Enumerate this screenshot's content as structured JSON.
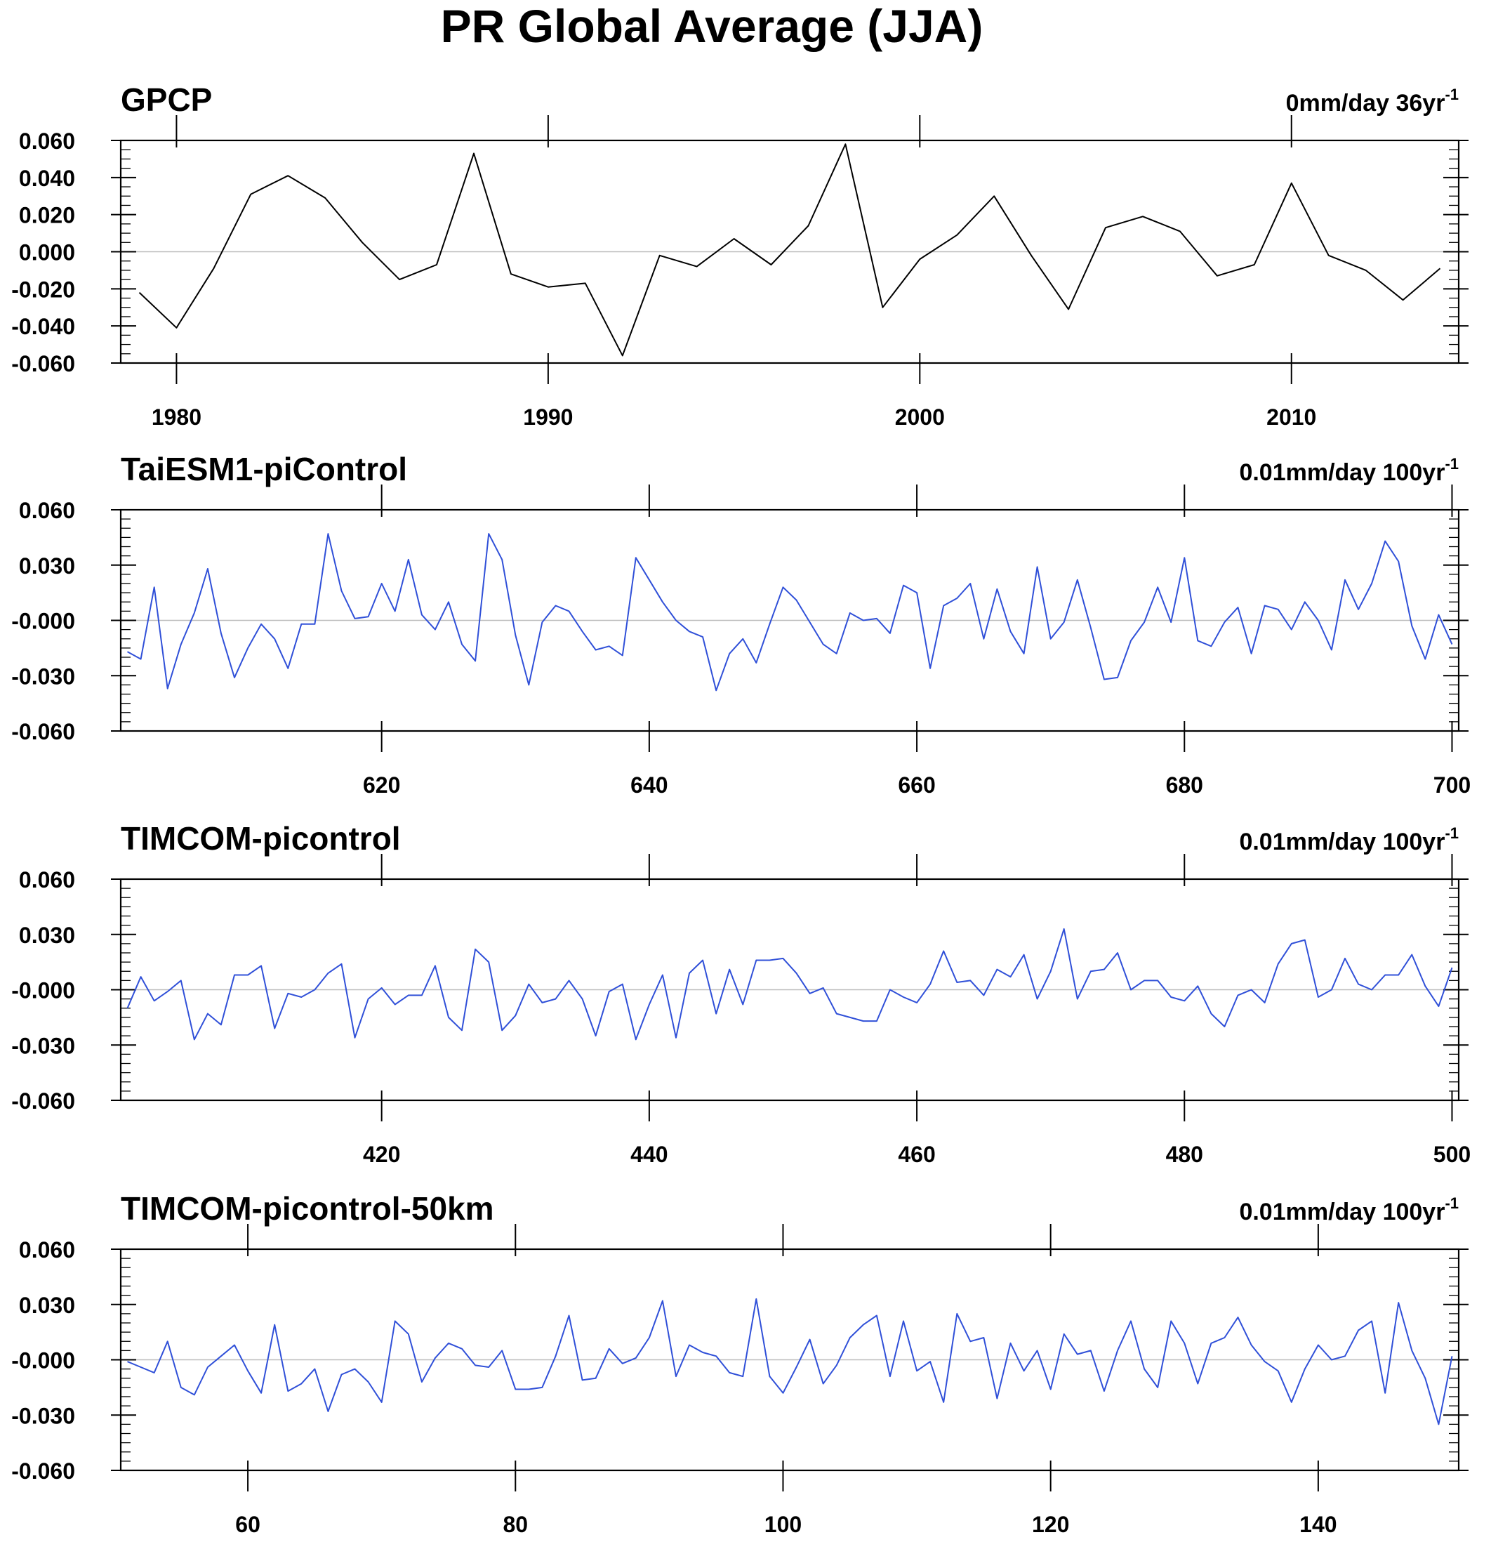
{
  "figure": {
    "title": "PR Global Average (JJA)"
  },
  "chart_data": [
    {
      "type": "line",
      "title": "GPCP",
      "trend_label": "0mm/day 36yr",
      "trend_superscript": "-1",
      "line_color": "#000000",
      "zero_line_color": "#bdbdbd",
      "xlabel": "",
      "ylabel": "",
      "xlim": [
        1978.5,
        2014.5
      ],
      "ylim": [
        -0.06,
        0.06
      ],
      "x_ticks": [
        1980,
        1990,
        2000,
        2010
      ],
      "x_tick_labels": [
        "1980",
        "1990",
        "2000",
        "2010"
      ],
      "y_ticks": [
        0.06,
        0.04,
        0.02,
        0.0,
        -0.02,
        -0.04,
        -0.06
      ],
      "y_tick_labels": [
        "0.060",
        "0.040",
        "0.020",
        "0.000",
        "-0.020",
        "-0.040",
        "-0.060"
      ],
      "grid": false,
      "series": [
        {
          "x_start": 1979,
          "x_step": 1,
          "values": [
            -0.022,
            -0.041,
            -0.009,
            0.031,
            0.041,
            0.029,
            0.005,
            -0.015,
            -0.007,
            0.053,
            -0.012,
            -0.019,
            -0.017,
            -0.056,
            -0.002,
            -0.008,
            0.007,
            -0.007,
            0.014,
            0.058,
            -0.03,
            -0.004,
            0.009,
            0.03,
            -0.002,
            -0.031,
            0.013,
            0.019,
            0.011,
            -0.013,
            -0.007,
            0.037,
            -0.002,
            -0.01,
            -0.026,
            -0.009
          ]
        }
      ]
    },
    {
      "type": "line",
      "title": "TaiESM1-piControl",
      "trend_label": "0.01mm/day 100yr",
      "trend_superscript": "-1",
      "line_color": "#3050d8",
      "zero_line_color": "#bdbdbd",
      "xlabel": "",
      "ylabel": "",
      "xlim": [
        600.5,
        700.5
      ],
      "ylim": [
        -0.06,
        0.06
      ],
      "x_ticks": [
        620,
        640,
        660,
        680,
        700
      ],
      "x_tick_labels": [
        "620",
        "640",
        "660",
        "680",
        "700"
      ],
      "y_ticks": [
        0.06,
        0.03,
        0.0,
        -0.03,
        -0.06
      ],
      "y_tick_labels": [
        "0.060",
        "0.030",
        "-0.000",
        "-0.030",
        "-0.060"
      ],
      "grid": false,
      "series": [
        {
          "x_start": 601,
          "x_step": 1,
          "values": [
            -0.017,
            -0.021,
            0.018,
            -0.037,
            -0.013,
            0.004,
            0.028,
            -0.007,
            -0.031,
            -0.015,
            -0.002,
            -0.01,
            -0.026,
            -0.002,
            -0.002,
            0.047,
            0.016,
            0.001,
            0.002,
            0.02,
            0.005,
            0.033,
            0.003,
            -0.005,
            0.01,
            -0.013,
            -0.022,
            0.047,
            0.033,
            -0.008,
            -0.035,
            -0.001,
            0.008,
            0.005,
            -0.006,
            -0.016,
            -0.014,
            -0.019,
            0.034,
            0.022,
            0.01,
            0.0,
            -0.006,
            -0.009,
            -0.038,
            -0.018,
            -0.01,
            -0.023,
            -0.002,
            0.018,
            0.011,
            -0.001,
            -0.013,
            -0.018,
            0.004,
            0.0,
            0.001,
            -0.007,
            0.019,
            0.015,
            -0.026,
            0.008,
            0.012,
            0.02,
            -0.01,
            0.017,
            -0.006,
            -0.018,
            0.029,
            -0.01,
            -0.001,
            0.022,
            -0.004,
            -0.032,
            -0.031,
            -0.011,
            -0.001,
            0.018,
            -0.001,
            0.034,
            -0.011,
            -0.014,
            -0.001,
            0.007,
            -0.018,
            0.008,
            0.006,
            -0.005,
            0.01,
            0.0,
            -0.016,
            0.022,
            0.006,
            0.02,
            0.043,
            0.032,
            -0.003,
            -0.021,
            0.003,
            -0.013
          ]
        }
      ]
    },
    {
      "type": "line",
      "title": "TIMCOM-picontrol",
      "trend_label": "0.01mm/day 100yr",
      "trend_superscript": "-1",
      "line_color": "#3050d8",
      "zero_line_color": "#bdbdbd",
      "xlabel": "",
      "ylabel": "",
      "xlim": [
        400.5,
        500.5
      ],
      "ylim": [
        -0.06,
        0.06
      ],
      "x_ticks": [
        420,
        440,
        460,
        480,
        500
      ],
      "x_tick_labels": [
        "420",
        "440",
        "460",
        "480",
        "500"
      ],
      "y_ticks": [
        0.06,
        0.03,
        0.0,
        -0.03,
        -0.06
      ],
      "y_tick_labels": [
        "0.060",
        "0.030",
        "-0.000",
        "-0.030",
        "-0.060"
      ],
      "grid": false,
      "series": [
        {
          "x_start": 401,
          "x_step": 1,
          "values": [
            -0.01,
            0.007,
            -0.006,
            -0.001,
            0.005,
            -0.027,
            -0.013,
            -0.019,
            0.008,
            0.008,
            0.013,
            -0.021,
            -0.002,
            -0.004,
            0.0,
            0.009,
            0.014,
            -0.026,
            -0.005,
            0.001,
            -0.008,
            -0.003,
            -0.003,
            0.013,
            -0.015,
            -0.022,
            0.022,
            0.015,
            -0.022,
            -0.014,
            0.003,
            -0.007,
            -0.005,
            0.005,
            -0.005,
            -0.025,
            -0.001,
            0.003,
            -0.027,
            -0.008,
            0.008,
            -0.026,
            0.009,
            0.016,
            -0.013,
            0.011,
            -0.008,
            0.016,
            0.016,
            0.017,
            0.009,
            -0.002,
            0.001,
            -0.013,
            -0.015,
            -0.017,
            -0.017,
            0.0,
            -0.004,
            -0.007,
            0.003,
            0.021,
            0.004,
            0.005,
            -0.003,
            0.011,
            0.007,
            0.019,
            -0.005,
            0.01,
            0.033,
            -0.005,
            0.01,
            0.011,
            0.02,
            0.0,
            0.005,
            0.005,
            -0.004,
            -0.006,
            0.002,
            -0.013,
            -0.02,
            -0.003,
            0.0,
            -0.007,
            0.014,
            0.025,
            0.027,
            -0.004,
            0.0,
            0.017,
            0.003,
            0.0,
            0.008,
            0.008,
            0.019,
            0.002,
            -0.009,
            0.012
          ]
        }
      ]
    },
    {
      "type": "line",
      "title": "TIMCOM-picontrol-50km",
      "trend_label": "0.01mm/day 100yr",
      "trend_superscript": "-1",
      "line_color": "#3050d8",
      "zero_line_color": "#bdbdbd",
      "xlabel": "",
      "ylabel": "",
      "xlim": [
        50.5,
        150.5
      ],
      "ylim": [
        -0.06,
        0.06
      ],
      "x_ticks": [
        60,
        80,
        100,
        120,
        140
      ],
      "x_tick_labels": [
        "60",
        "80",
        "100",
        "120",
        "140"
      ],
      "y_ticks": [
        0.06,
        0.03,
        0.0,
        -0.03,
        -0.06
      ],
      "y_tick_labels": [
        "0.060",
        "0.030",
        "-0.000",
        "-0.030",
        "-0.060"
      ],
      "grid": false,
      "series": [
        {
          "x_start": 51,
          "x_step": 1,
          "values": [
            -0.001,
            -0.004,
            -0.007,
            0.01,
            -0.015,
            -0.019,
            -0.004,
            0.002,
            0.008,
            -0.006,
            -0.018,
            0.019,
            -0.017,
            -0.013,
            -0.005,
            -0.028,
            -0.008,
            -0.005,
            -0.012,
            -0.023,
            0.021,
            0.014,
            -0.012,
            0.001,
            0.009,
            0.006,
            -0.003,
            -0.004,
            0.005,
            -0.016,
            -0.016,
            -0.015,
            0.002,
            0.024,
            -0.011,
            -0.01,
            0.006,
            -0.002,
            0.001,
            0.012,
            0.032,
            -0.009,
            0.008,
            0.004,
            0.002,
            -0.007,
            -0.009,
            0.033,
            -0.009,
            -0.018,
            -0.004,
            0.011,
            -0.013,
            -0.003,
            0.012,
            0.019,
            0.024,
            -0.009,
            0.021,
            -0.006,
            -0.001,
            -0.023,
            0.025,
            0.01,
            0.012,
            -0.021,
            0.009,
            -0.006,
            0.005,
            -0.016,
            0.014,
            0.003,
            0.005,
            -0.017,
            0.005,
            0.021,
            -0.005,
            -0.015,
            0.021,
            0.009,
            -0.013,
            0.009,
            0.012,
            0.023,
            0.008,
            -0.001,
            -0.006,
            -0.023,
            -0.005,
            0.008,
            0.0,
            0.002,
            0.016,
            0.021,
            -0.018,
            0.031,
            0.005,
            -0.01,
            -0.035,
            0.002
          ]
        }
      ]
    }
  ]
}
